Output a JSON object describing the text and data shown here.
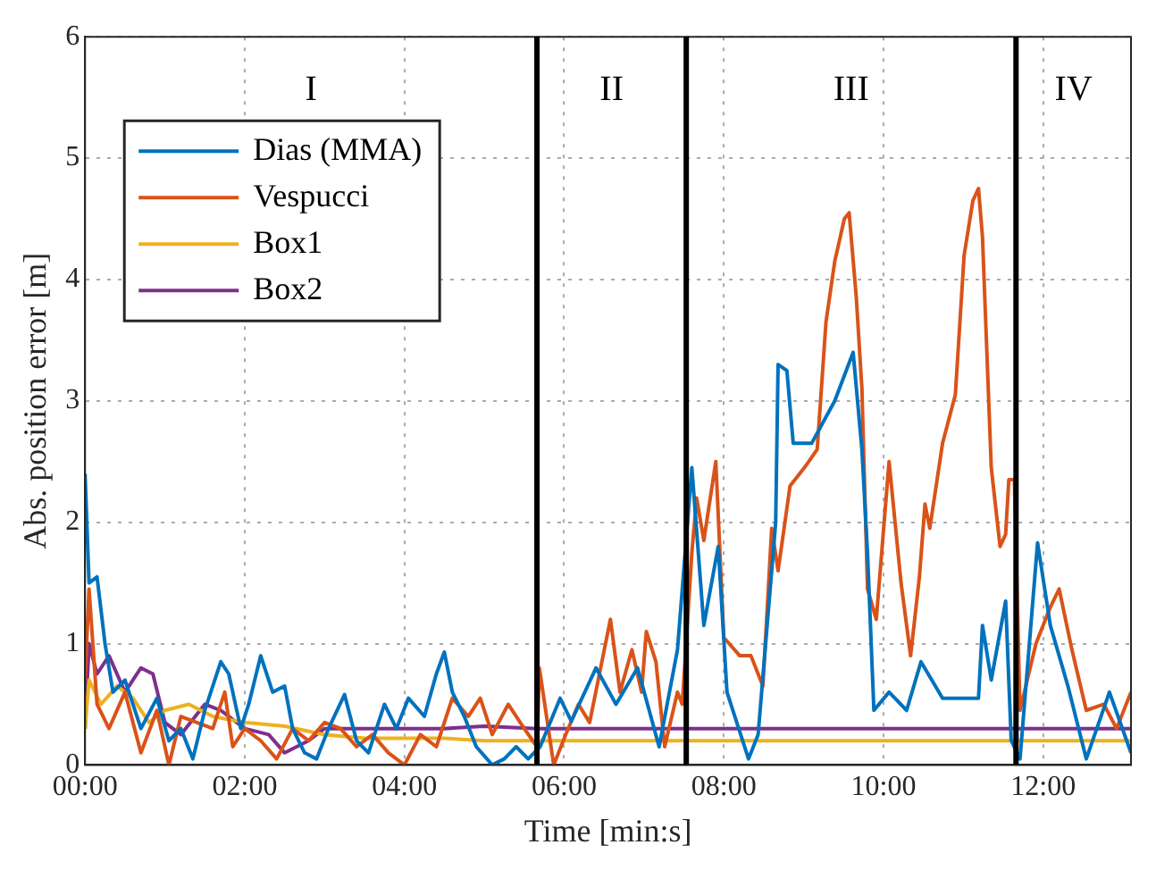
{
  "chart_data": {
    "type": "line",
    "xlabel": "Time [min:s]",
    "ylabel": "Abs. position error [m]",
    "xlim": [
      0,
      13.1
    ],
    "ylim": [
      0,
      6
    ],
    "xticks": [
      {
        "value": 0,
        "label": "00:00"
      },
      {
        "value": 2,
        "label": "02:00"
      },
      {
        "value": 4,
        "label": "04:00"
      },
      {
        "value": 6,
        "label": "06:00"
      },
      {
        "value": 8,
        "label": "08:00"
      },
      {
        "value": 10,
        "label": "10:00"
      },
      {
        "value": 12,
        "label": "12:00"
      }
    ],
    "yticks": [
      0,
      1,
      2,
      3,
      4,
      5,
      6
    ],
    "grid": true,
    "legend": "top left",
    "marker": "none",
    "line_style": "solid",
    "ref_lines": [
      {
        "axis": "x",
        "value": 5.66,
        "color": "#000000"
      },
      {
        "axis": "x",
        "value": 7.53,
        "color": "#000000"
      },
      {
        "axis": "x",
        "value": 11.66,
        "color": "#000000"
      }
    ],
    "annotations": [
      "I",
      "II",
      "III",
      "IV"
    ],
    "series": [
      {
        "name": "Dias (MMA)",
        "color": "#0072bd",
        "x": [
          0,
          0.05,
          0.15,
          0.25,
          0.35,
          0.5,
          0.7,
          0.9,
          1.05,
          1.2,
          1.35,
          1.5,
          1.7,
          1.8,
          1.95,
          2.05,
          2.2,
          2.35,
          2.5,
          2.6,
          2.75,
          2.9,
          3.05,
          3.25,
          3.4,
          3.55,
          3.75,
          3.9,
          4.05,
          4.25,
          4.4,
          4.5,
          4.6,
          4.75,
          4.9,
          5.1,
          5.25,
          5.4,
          5.55,
          5.7,
          5.95,
          6.09,
          6.4,
          6.65,
          6.92,
          7.19,
          7.42,
          7.6,
          7.75,
          7.93,
          8.04,
          8.31,
          8.43,
          8.65,
          8.68,
          8.79,
          8.87,
          9.1,
          9.39,
          9.62,
          9.73,
          9.8,
          9.88,
          10.07,
          10.29,
          10.47,
          10.74,
          11.19,
          11.24,
          11.35,
          11.53,
          11.6,
          11.71,
          11.93,
          12.09,
          12.31,
          12.54,
          12.83,
          13.1
        ],
        "values": [
          2.4,
          1.5,
          1.55,
          1.0,
          0.6,
          0.7,
          0.3,
          0.55,
          0.2,
          0.3,
          0.05,
          0.45,
          0.85,
          0.75,
          0.3,
          0.5,
          0.9,
          0.6,
          0.65,
          0.3,
          0.1,
          0.05,
          0.3,
          0.58,
          0.2,
          0.1,
          0.5,
          0.3,
          0.55,
          0.4,
          0.75,
          0.93,
          0.6,
          0.4,
          0.15,
          0.0,
          0.05,
          0.15,
          0.05,
          0.15,
          0.55,
          0.36,
          0.8,
          0.5,
          0.8,
          0.15,
          0.95,
          2.45,
          1.15,
          1.8,
          0.6,
          0.05,
          0.25,
          2.0,
          3.3,
          3.25,
          2.65,
          2.65,
          3.0,
          3.4,
          2.6,
          1.75,
          0.45,
          0.6,
          0.45,
          0.85,
          0.55,
          0.55,
          1.15,
          0.7,
          1.35,
          0.2,
          0.05,
          1.83,
          1.15,
          0.65,
          0.05,
          0.6,
          0.1
        ]
      },
      {
        "name": "Vespucci",
        "color": "#d95319",
        "x": [
          0,
          0.05,
          0.15,
          0.3,
          0.5,
          0.7,
          0.9,
          1.05,
          1.2,
          1.4,
          1.6,
          1.75,
          1.85,
          2.0,
          2.2,
          2.4,
          2.6,
          2.8,
          3.0,
          3.2,
          3.4,
          3.6,
          3.8,
          4.0,
          4.2,
          4.4,
          4.6,
          4.8,
          4.95,
          5.1,
          5.3,
          5.5,
          5.66,
          5.69,
          5.87,
          6.02,
          6.18,
          6.32,
          6.58,
          6.7,
          6.85,
          6.97,
          7.03,
          7.15,
          7.26,
          7.42,
          7.48,
          7.6,
          7.66,
          7.75,
          7.9,
          8.0,
          8.2,
          8.34,
          8.49,
          8.6,
          8.68,
          8.83,
          9.01,
          9.17,
          9.28,
          9.39,
          9.51,
          9.57,
          9.66,
          9.73,
          9.8,
          9.91,
          10.07,
          10.22,
          10.34,
          10.45,
          10.52,
          10.58,
          10.74,
          10.9,
          11.01,
          11.12,
          11.19,
          11.24,
          11.35,
          11.46,
          11.53,
          11.57,
          11.64,
          11.71,
          11.91,
          12.09,
          12.2,
          12.36,
          12.54,
          12.76,
          12.92,
          13.1
        ],
        "values": [
          0.7,
          1.45,
          0.5,
          0.3,
          0.6,
          0.1,
          0.45,
          0.0,
          0.4,
          0.35,
          0.3,
          0.6,
          0.15,
          0.3,
          0.2,
          0.05,
          0.3,
          0.2,
          0.35,
          0.3,
          0.15,
          0.25,
          0.1,
          0.0,
          0.25,
          0.15,
          0.55,
          0.4,
          0.55,
          0.25,
          0.5,
          0.3,
          0.15,
          0.8,
          0.0,
          0.25,
          0.5,
          0.35,
          1.2,
          0.6,
          0.95,
          0.6,
          1.1,
          0.85,
          0.15,
          0.6,
          0.5,
          1.75,
          2.2,
          1.85,
          2.5,
          1.05,
          0.9,
          0.9,
          0.65,
          1.95,
          1.6,
          2.3,
          2.45,
          2.6,
          3.65,
          4.15,
          4.5,
          4.55,
          3.85,
          3.1,
          1.45,
          1.2,
          2.5,
          1.5,
          0.9,
          1.55,
          2.15,
          1.95,
          2.65,
          3.05,
          4.2,
          4.65,
          4.75,
          4.35,
          2.45,
          1.8,
          1.9,
          2.35,
          2.35,
          0.45,
          1.0,
          1.3,
          1.45,
          0.95,
          0.45,
          0.5,
          0.3,
          0.6
        ]
      },
      {
        "name": "Box1",
        "color": "#edb120",
        "x": [
          0,
          0.05,
          0.2,
          0.4,
          0.6,
          0.8,
          1.0,
          1.3,
          1.6,
          2.0,
          2.5,
          3.0,
          3.5,
          4.0,
          4.5,
          5.0,
          5.66,
          13.1
        ],
        "values": [
          0.3,
          0.7,
          0.5,
          0.65,
          0.55,
          0.35,
          0.45,
          0.5,
          0.4,
          0.35,
          0.32,
          0.25,
          0.22,
          0.22,
          0.22,
          0.2,
          0.2,
          0.2
        ]
      },
      {
        "name": "Box2",
        "color": "#7e2f8e",
        "x": [
          0,
          0.05,
          0.15,
          0.3,
          0.5,
          0.7,
          0.85,
          1.0,
          1.2,
          1.5,
          1.7,
          2.0,
          2.3,
          2.5,
          2.8,
          3.0,
          3.5,
          4.0,
          4.5,
          5.0,
          5.66,
          13.1
        ],
        "values": [
          0.3,
          1.0,
          0.75,
          0.9,
          0.6,
          0.8,
          0.75,
          0.35,
          0.25,
          0.5,
          0.45,
          0.3,
          0.25,
          0.1,
          0.2,
          0.3,
          0.3,
          0.3,
          0.3,
          0.32,
          0.3,
          0.3
        ]
      }
    ]
  }
}
